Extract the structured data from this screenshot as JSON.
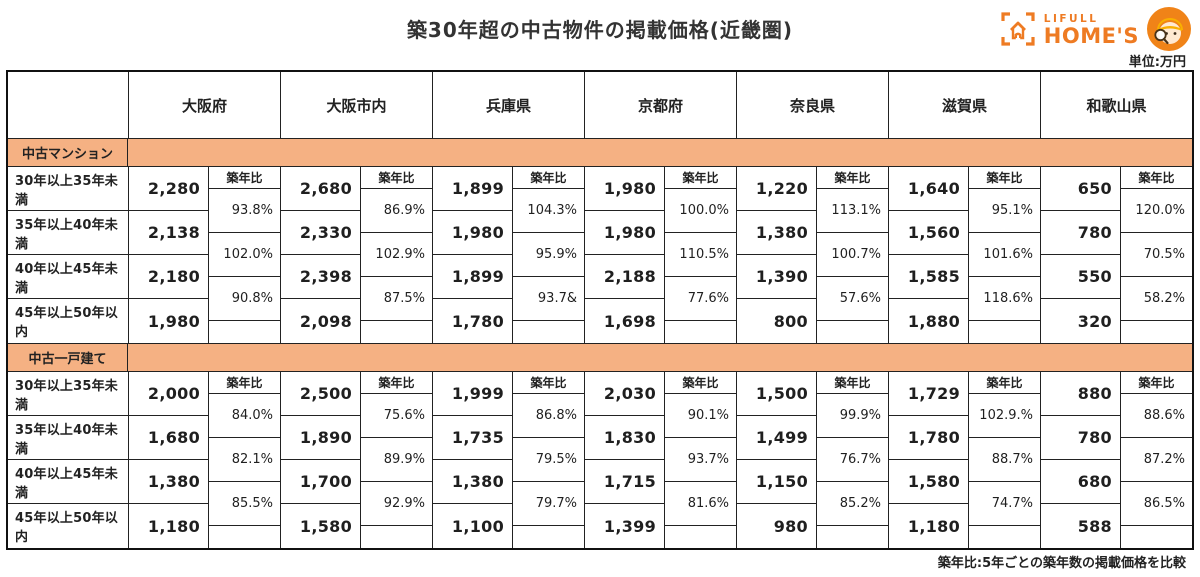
{
  "title": "築30年超の中古物件の掲載価格(近畿圏)",
  "unit_label": "単位:万円",
  "footnote": "築年比:5年ごとの築年数の掲載価格を比較",
  "logo": {
    "brand_top": "LIFULL",
    "brand_bottom": "HOME'S"
  },
  "colors": {
    "brand_orange": "#EE7B23",
    "band_peach": "#F5B183",
    "mascot_orange": "#F08318",
    "helmet_yellow": "#F9B000",
    "border_dark": "#222222"
  },
  "table": {
    "prefectures": [
      "大阪府",
      "大阪市内",
      "兵庫県",
      "京都府",
      "奈良県",
      "滋賀県",
      "和歌山県"
    ],
    "age_rows": [
      "30年以上35年未満",
      "35年以上40年未満",
      "40年以上45年未満",
      "45年以上50年以内"
    ],
    "ratio_header": "築年比",
    "sections": [
      {
        "label": "中古マンション",
        "prices": [
          [
            "2,280",
            "2,680",
            "1,899",
            "1,980",
            "1,220",
            "1,640",
            "650"
          ],
          [
            "2,138",
            "2,330",
            "1,980",
            "1,980",
            "1,380",
            "1,560",
            "780"
          ],
          [
            "2,180",
            "2,398",
            "1,899",
            "2,188",
            "1,390",
            "1,585",
            "550"
          ],
          [
            "1,980",
            "2,098",
            "1,780",
            "1,698",
            "800",
            "1,880",
            "320"
          ]
        ],
        "ratios": [
          [
            "93.8%",
            "86.9%",
            "104.3%",
            "100.0%",
            "113.1%",
            "95.1%",
            "120.0%"
          ],
          [
            "102.0%",
            "102.9%",
            "95.9%",
            "110.5%",
            "100.7%",
            "101.6%",
            "70.5%"
          ],
          [
            "90.8%",
            "87.5%",
            "93.7&",
            "77.6%",
            "57.6%",
            "118.6%",
            "58.2%"
          ]
        ]
      },
      {
        "label": "中古一戸建て",
        "prices": [
          [
            "2,000",
            "2,500",
            "1,999",
            "2,030",
            "1,500",
            "1,729",
            "880"
          ],
          [
            "1,680",
            "1,890",
            "1,735",
            "1,830",
            "1,499",
            "1,780",
            "780"
          ],
          [
            "1,380",
            "1,700",
            "1,380",
            "1,715",
            "1,150",
            "1,580",
            "680"
          ],
          [
            "1,180",
            "1,580",
            "1,100",
            "1,399",
            "980",
            "1,180",
            "588"
          ]
        ],
        "ratios": [
          [
            "84.0%",
            "75.6%",
            "86.8%",
            "90.1%",
            "99.9%",
            "102.9.%",
            "88.6%"
          ],
          [
            "82.1%",
            "89.9%",
            "79.5%",
            "93.7%",
            "76.7%",
            "88.7%",
            "87.2%"
          ],
          [
            "85.5%",
            "92.9%",
            "79.7%",
            "81.6%",
            "85.2%",
            "74.7%",
            "86.5%"
          ]
        ]
      }
    ]
  },
  "chart_data": {
    "type": "table",
    "title": "築30年超の中古物件の掲載価格(近畿圏)",
    "unit": "万円",
    "columns": [
      "大阪府",
      "大阪市内",
      "兵庫県",
      "京都府",
      "奈良県",
      "滋賀県",
      "和歌山県"
    ],
    "age_bands": [
      "30年以上35年未満",
      "35年以上40年未満",
      "40年以上45年未満",
      "45年以上50年以内"
    ],
    "sections": [
      {
        "name": "中古マンション",
        "prices": [
          [
            2280,
            2680,
            1899,
            1980,
            1220,
            1640,
            650
          ],
          [
            2138,
            2330,
            1980,
            1980,
            1380,
            1560,
            780
          ],
          [
            2180,
            2398,
            1899,
            2188,
            1390,
            1585,
            550
          ],
          [
            1980,
            2098,
            1780,
            1698,
            800,
            1880,
            320
          ]
        ],
        "ratios_pct": [
          [
            93.8,
            86.9,
            104.3,
            100.0,
            113.1,
            95.1,
            120.0
          ],
          [
            102.0,
            102.9,
            95.9,
            110.5,
            100.7,
            101.6,
            70.5
          ],
          [
            90.8,
            87.5,
            93.7,
            77.6,
            57.6,
            118.6,
            58.2
          ]
        ]
      },
      {
        "name": "中古一戸建て",
        "prices": [
          [
            2000,
            2500,
            1999,
            2030,
            1500,
            1729,
            880
          ],
          [
            1680,
            1890,
            1735,
            1830,
            1499,
            1780,
            780
          ],
          [
            1380,
            1700,
            1380,
            1715,
            1150,
            1580,
            680
          ],
          [
            1180,
            1580,
            1100,
            1399,
            980,
            1180,
            588
          ]
        ],
        "ratios_pct": [
          [
            84.0,
            75.6,
            86.8,
            90.1,
            99.9,
            102.9,
            88.6
          ],
          [
            82.1,
            89.9,
            79.5,
            93.7,
            76.7,
            88.7,
            87.2
          ],
          [
            85.5,
            92.9,
            79.7,
            81.6,
            85.2,
            74.7,
            86.5
          ]
        ]
      }
    ]
  }
}
